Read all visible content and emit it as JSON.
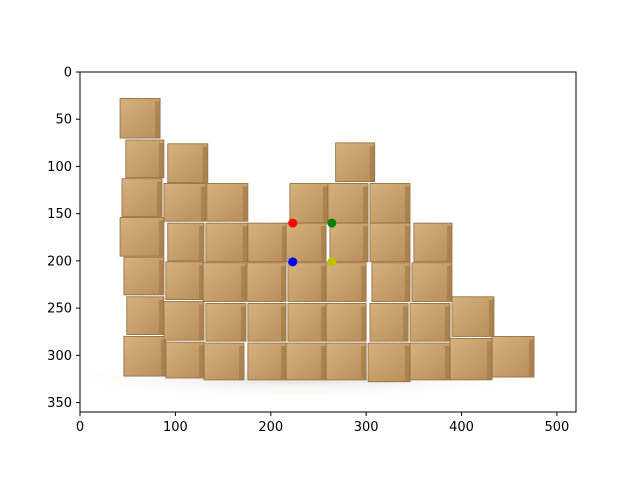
{
  "chart_data": {
    "type": "scatter",
    "title": "",
    "xlabel": "",
    "ylabel": "",
    "xlim": [
      0,
      520
    ],
    "ylim": [
      360,
      0
    ],
    "y_axis_inverted": true,
    "grid": false,
    "legend": "none",
    "background_image": "photo-of-stacked-cardboard-boxes",
    "x_ticks": [
      0,
      100,
      200,
      300,
      400,
      500
    ],
    "y_ticks": [
      0,
      50,
      100,
      150,
      200,
      250,
      300,
      350
    ],
    "series": [
      {
        "color": "#ff0000",
        "points": [
          {
            "x": 223,
            "y": 160
          }
        ]
      },
      {
        "color": "#008000",
        "points": [
          {
            "x": 264,
            "y": 160
          }
        ]
      },
      {
        "color": "#0000ff",
        "points": [
          {
            "x": 223,
            "y": 201
          }
        ]
      },
      {
        "color": "#bfbf00",
        "points": [
          {
            "x": 264,
            "y": 201
          }
        ]
      }
    ]
  }
}
